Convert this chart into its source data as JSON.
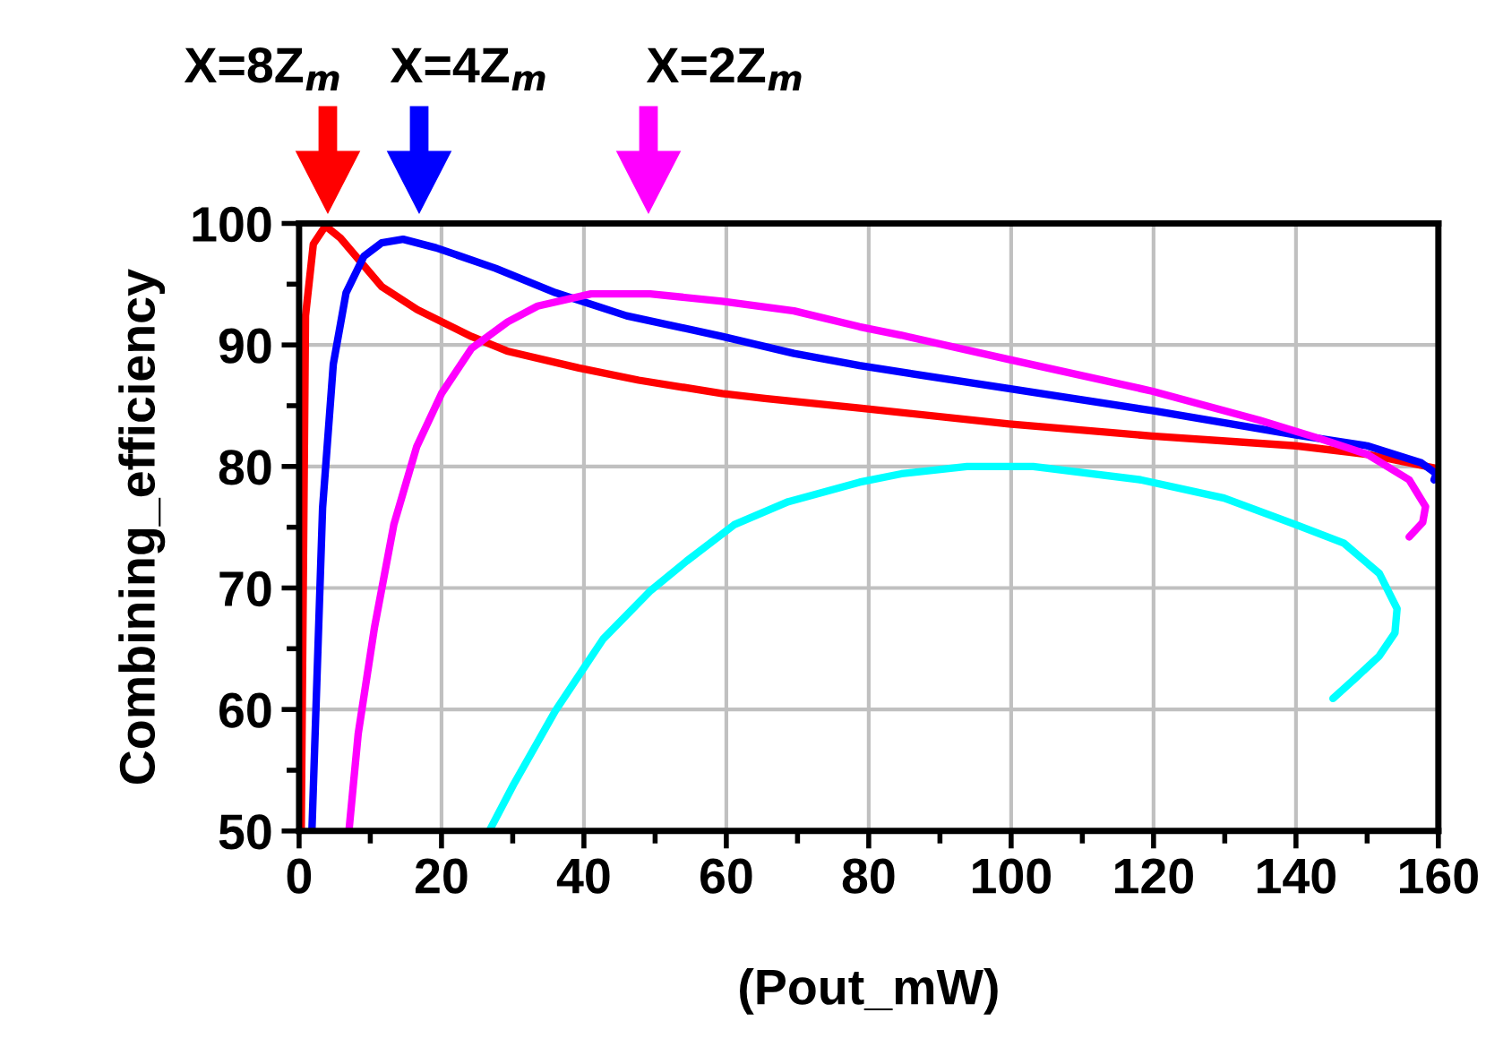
{
  "chart_data": {
    "type": "line",
    "xlabel": "(Pout_mW)",
    "ylabel": "Combining_efficiency",
    "xlim": [
      0,
      160
    ],
    "xticks": [
      0,
      20,
      40,
      60,
      80,
      100,
      120,
      140,
      160
    ],
    "ylim": [
      50,
      100
    ],
    "yticks": [
      50,
      60,
      70,
      80,
      90,
      100
    ],
    "grid": true,
    "annotations": [
      "X=8Z$_{m}$",
      "X=4Z$_{m}$",
      "X=2Z$_{m}$"
    ],
    "series": [
      {
        "color": "#ff0000",
        "x": [
          0.3,
          0.9,
          2,
          3.7,
          5.8,
          11.6,
          16.6,
          24.2,
          29.2,
          39.3,
          47.7,
          59.4,
          65.4,
          78.7,
          99.7,
          119.8,
          140,
          150,
          160
        ],
        "values": [
          50,
          92.4,
          98.3,
          99.8,
          98.8,
          94.8,
          92.9,
          90.7,
          89.5,
          88.1,
          87.1,
          86,
          85.6,
          84.8,
          83.5,
          82.5,
          81.7,
          81,
          79.8
        ]
      },
      {
        "color": "#0000ff",
        "x": [
          1.8,
          3.3,
          4.8,
          6.6,
          9.1,
          11.6,
          14.6,
          19.2,
          27.6,
          36,
          46,
          59.4,
          69.5,
          78.7,
          99.7,
          119.8,
          140,
          150,
          157.6,
          159.7,
          159.4
        ],
        "values": [
          50,
          76.6,
          88.4,
          94.3,
          97.3,
          98.4,
          98.7,
          98,
          96.3,
          94.3,
          92.4,
          90.7,
          89.3,
          88.3,
          86.4,
          84.6,
          82.6,
          81.7,
          80.3,
          79.4,
          78.9
        ]
      },
      {
        "color": "#ff00ff",
        "x": [
          7,
          8.3,
          10.6,
          13.3,
          16.5,
          20,
          24.2,
          29.3,
          33.5,
          41,
          49.3,
          59.4,
          69.5,
          78.7,
          84.6,
          99.7,
          119.8,
          134.9,
          143.3,
          150,
          155.9,
          158.2,
          157.8,
          155.9
        ],
        "values": [
          50,
          58,
          66.8,
          75.2,
          81.6,
          86,
          89.7,
          91.9,
          93.2,
          94.2,
          94.2,
          93.6,
          92.8,
          91.5,
          90.8,
          88.8,
          86.2,
          83.8,
          82.3,
          81,
          78.9,
          76.7,
          75.4,
          74.2
        ]
      },
      {
        "color": "#00ffff",
        "x": [
          26.7,
          30.1,
          36,
          42.7,
          49.4,
          54.4,
          61.1,
          68.7,
          78.7,
          84.6,
          93.8,
          103.1,
          118.2,
          129.9,
          140,
          146.7,
          151.7,
          154.2,
          153.9,
          151.7,
          148.4,
          145.2
        ],
        "values": [
          50,
          53.8,
          59.9,
          65.8,
          69.8,
          72.2,
          75.2,
          77.1,
          78.7,
          79.4,
          80,
          80,
          78.9,
          77.4,
          75.2,
          73.7,
          71.2,
          68.3,
          66.3,
          64.4,
          62.6,
          60.9
        ]
      }
    ]
  }
}
